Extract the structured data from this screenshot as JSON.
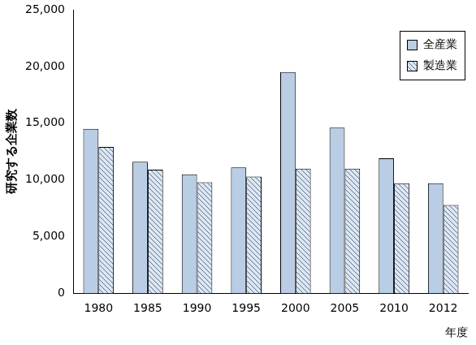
{
  "chart_data": {
    "type": "bar",
    "categories": [
      "1980",
      "1985",
      "1990",
      "1995",
      "2000",
      "2005",
      "2010",
      "2012"
    ],
    "series": [
      {
        "name": "全産業",
        "color": "#b9cde5",
        "values": [
          14500,
          11600,
          10500,
          11100,
          19500,
          14600,
          11900,
          9700
        ]
      },
      {
        "name": "製造業",
        "color": "#dce6f2",
        "values": [
          12900,
          10900,
          9800,
          10300,
          11000,
          11000,
          9700,
          7800
        ]
      }
    ],
    "x_label": "年度",
    "y_label": "研究する企業数",
    "ylim": [
      0,
      25000
    ],
    "yticks": [
      0,
      {
        "value": 5000,
        "label": "5,000"
      },
      {
        "value": 10000,
        "label": "10,000"
      },
      {
        "value": 15000,
        "label": "15,000"
      },
      {
        "value": 20000,
        "label": "20,000"
      },
      {
        "value": 25000,
        "label": "25,000"
      }
    ],
    "grid": false,
    "legend": "upper right"
  }
}
